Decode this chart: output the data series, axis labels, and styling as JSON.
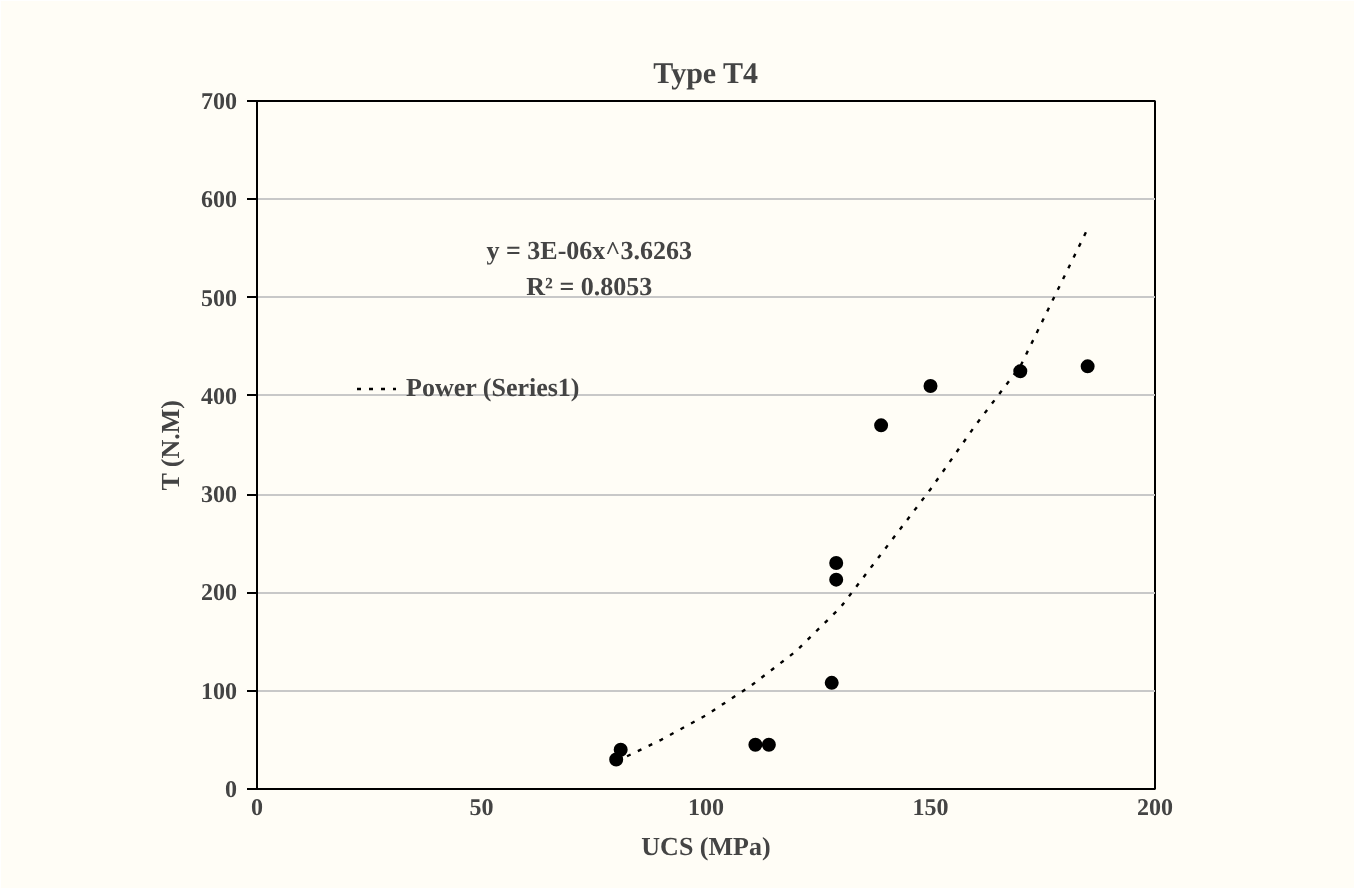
{
  "chart_data": {
    "type": "scatter",
    "title": "Type T4",
    "xlabel": "UCS (MPa)",
    "ylabel": "T (N.M)",
    "series": [
      {
        "color": "#000000",
        "marker": "circle",
        "x": [
          80,
          81,
          111,
          114,
          128,
          129,
          129,
          139,
          150,
          170,
          185
        ],
        "values": [
          30,
          40,
          45,
          45,
          108,
          213,
          230,
          370,
          410,
          425,
          430
        ]
      },
      {
        "type": "line",
        "name": "Power (Series1)",
        "color": "#000000",
        "line_style": "dotted",
        "x": [
          80,
          90,
          100,
          110,
          120,
          130,
          140,
          150,
          160,
          170,
          185
        ],
        "values": [
          28,
          50,
          75,
          105,
          140,
          185,
          245,
          305,
          370,
          430,
          570
        ]
      }
    ],
    "annotations": [
      "y = 3E-06x^3.6263",
      "R² = 0.8053"
    ],
    "xlim": [
      0,
      200
    ],
    "xticks": [
      0,
      50,
      100,
      150,
      200
    ],
    "ylim": [
      0,
      700
    ],
    "yticks": [
      0,
      100,
      200,
      300,
      400,
      500,
      600,
      700
    ],
    "grid": "y",
    "legend": "top left"
  }
}
